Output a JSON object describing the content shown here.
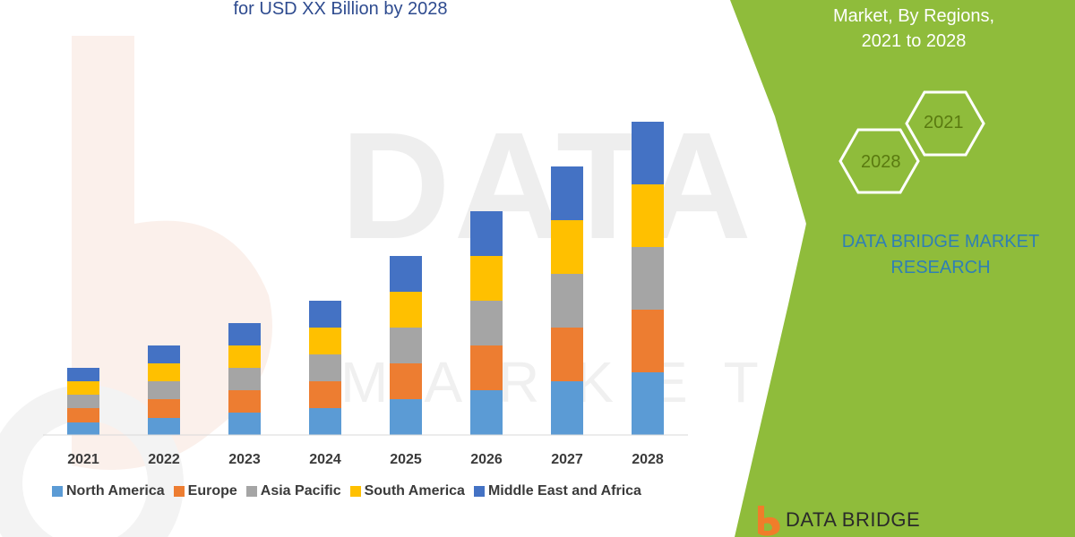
{
  "header": {
    "title_line": "for USD XX Billion by 2028"
  },
  "side_panel": {
    "title_line1": "Market, By Regions,",
    "title_line2": "2021 to 2028",
    "hex_small": "2021",
    "hex_large": "2028",
    "brand_line1": "DATA BRIDGE MARKET",
    "brand_line2": "RESEARCH"
  },
  "watermark": {
    "main": "DATA BRIDGE",
    "sub": "MARKET"
  },
  "footer_logo": {
    "text": "DATA BRIDGE"
  },
  "colors": {
    "green_panel": "#8fbc3b",
    "title_blue": "#2e4b8f",
    "brand_blue": "#2f7fb5"
  },
  "chart_data": {
    "type": "bar",
    "stacked": true,
    "categories": [
      "2021",
      "2022",
      "2023",
      "2024",
      "2025",
      "2026",
      "2027",
      "2028"
    ],
    "series": [
      {
        "name": "North America",
        "color": "#5b9bd5",
        "values": [
          14,
          19,
          25,
          30,
          40,
          50,
          60,
          70
        ]
      },
      {
        "name": "Europe",
        "color": "#ed7d31",
        "values": [
          16,
          21,
          25,
          30,
          40,
          50,
          60,
          70
        ]
      },
      {
        "name": "Asia Pacific",
        "color": "#a5a5a5",
        "values": [
          15,
          20,
          25,
          30,
          40,
          50,
          60,
          70
        ]
      },
      {
        "name": "South America",
        "color": "#ffc000",
        "values": [
          15,
          20,
          25,
          30,
          40,
          50,
          60,
          70
        ]
      },
      {
        "name": "Middle East and Africa",
        "color": "#4472c4",
        "values": [
          15,
          20,
          25,
          30,
          40,
          50,
          60,
          70
        ]
      }
    ],
    "title": "for USD XX Billion by 2028",
    "xlabel": "",
    "ylabel": "",
    "ylim": [
      0,
      352
    ],
    "grid": false,
    "legend": "bottom"
  }
}
